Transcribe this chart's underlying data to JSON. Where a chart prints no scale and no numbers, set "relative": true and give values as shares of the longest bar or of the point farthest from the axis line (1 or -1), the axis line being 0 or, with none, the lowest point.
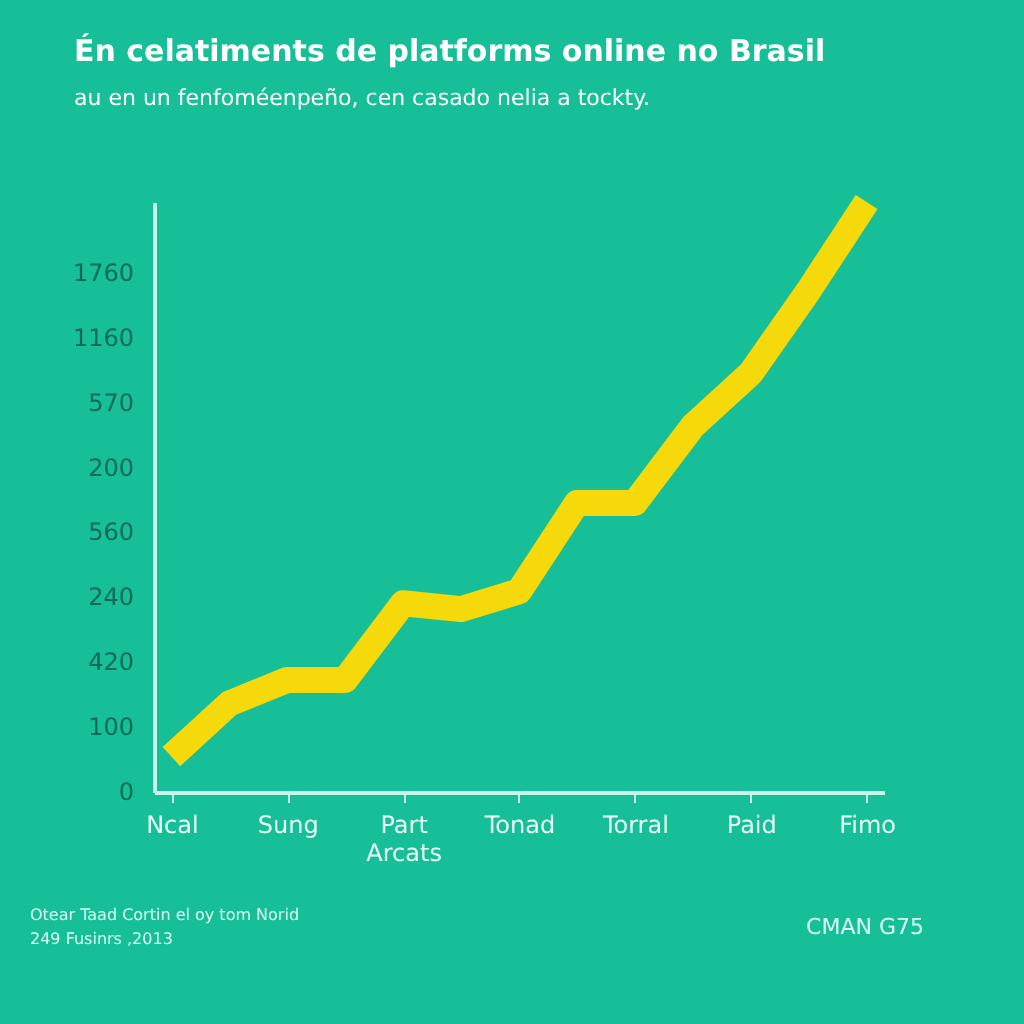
{
  "chart_data": {
    "type": "line",
    "title": "Én celatiments de platforms online no Brasil",
    "subtitle": "au en un fenfoméenpeño, cen casado nelia a tockty.",
    "categories": [
      "Ncal",
      null,
      "Sung",
      null,
      "Part Arcats",
      null,
      "Tonad",
      null,
      "Torral",
      null,
      "Paid",
      null,
      "Fimo"
    ],
    "series": [
      {
        "color": "#f5d90a",
        "values": [
          0.06,
          0.15,
          0.19,
          0.19,
          0.32,
          0.31,
          0.34,
          0.49,
          0.49,
          0.62,
          0.71,
          0.85,
          1.0
        ]
      }
    ],
    "relative": true,
    "marker": "none",
    "line_style": "solid",
    "annotations": [
      "1760",
      "1160",
      "570",
      "200",
      "560",
      "240",
      "420",
      "100",
      "0",
      "Otear Taad Cortin el oy tom Norid",
      "249 Fusinrs ,2013",
      "CMAN G75"
    ]
  }
}
